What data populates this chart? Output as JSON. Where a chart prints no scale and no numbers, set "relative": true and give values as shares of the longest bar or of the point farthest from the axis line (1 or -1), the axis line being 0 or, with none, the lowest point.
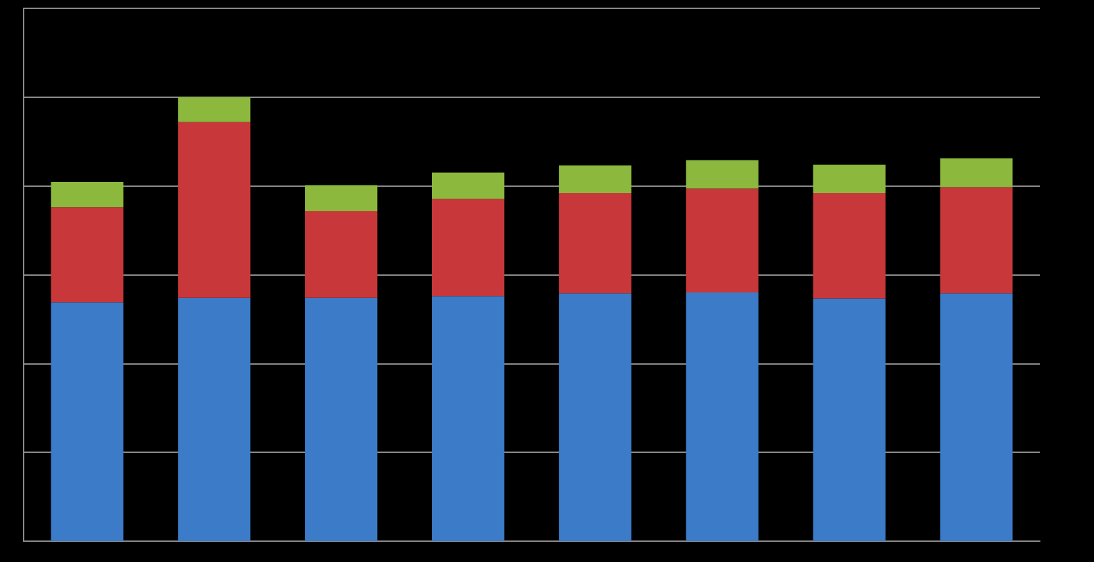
{
  "chart_data": {
    "type": "bar",
    "stacked": true,
    "relative": true,
    "grid": "y",
    "categories": [
      null,
      null,
      null,
      null,
      null,
      null,
      null,
      null
    ],
    "series": [
      {
        "color": "#3b7bc8",
        "values": [
          0.538,
          0.548,
          0.548,
          0.552,
          0.558,
          0.56,
          0.547,
          0.558
        ]
      },
      {
        "color": "#c8383a",
        "values": [
          0.214,
          0.396,
          0.195,
          0.219,
          0.226,
          0.234,
          0.237,
          0.239
        ]
      },
      {
        "color": "#8cb83e",
        "values": [
          0.057,
          0.056,
          0.059,
          0.059,
          0.062,
          0.064,
          0.064,
          0.065
        ]
      }
    ]
  }
}
